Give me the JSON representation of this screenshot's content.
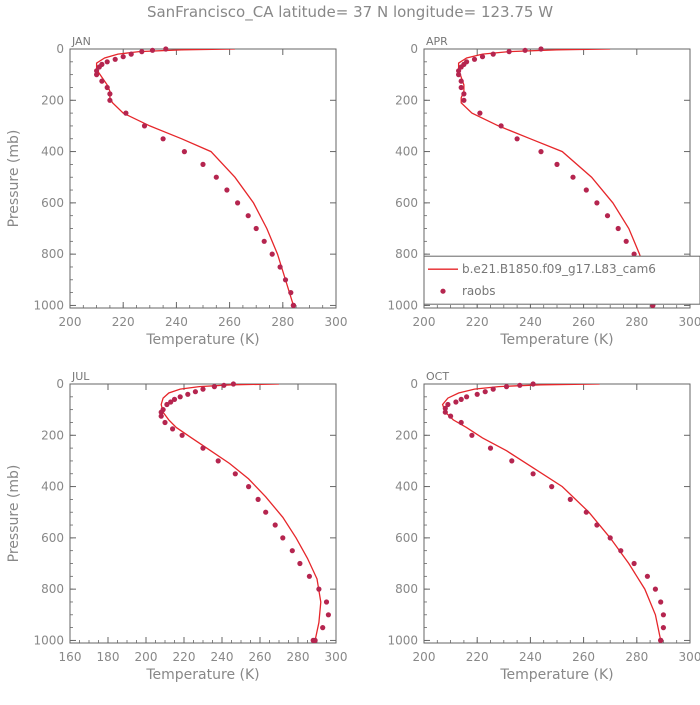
{
  "title": "SanFrancisco_CA  latitude= 37 N longitude= 123.75 W",
  "colors": {
    "model": "#e6262a",
    "obs": "#b5254f",
    "axis": "#666666",
    "text": "#888888"
  },
  "legend": {
    "model_label": "b.e21.B1850.f09_g17.L83_cam6",
    "obs_label": "raobs"
  },
  "chart_data": [
    {
      "type": "line",
      "panel": "JAN",
      "xlabel": "Temperature (K)",
      "ylabel": "Pressure (mb)",
      "xlim": [
        200,
        300
      ],
      "ylim": [
        1010,
        0
      ],
      "y_inverted": true,
      "xticks": [
        200,
        220,
        240,
        260,
        280,
        300
      ],
      "yticks": [
        0,
        200,
        400,
        600,
        800,
        1000
      ],
      "model": {
        "T": [
          262,
          242,
          226,
          218,
          213,
          210,
          210,
          212,
          214,
          215,
          215,
          216,
          220,
          230,
          242,
          253,
          262,
          269,
          274,
          278,
          281,
          284
        ],
        "P": [
          0,
          3,
          10,
          20,
          35,
          55,
          80,
          110,
          140,
          165,
          190,
          210,
          250,
          300,
          350,
          400,
          500,
          600,
          700,
          800,
          900,
          1000
        ]
      },
      "obs": {
        "T": [
          236,
          231,
          227,
          223,
          220,
          217,
          214,
          212,
          211,
          210,
          210,
          212,
          214,
          215,
          215,
          221,
          228,
          235,
          243,
          250,
          255,
          259,
          263,
          267,
          270,
          273,
          276,
          279,
          281,
          283,
          284,
          284
        ],
        "P": [
          0,
          5,
          10,
          20,
          30,
          40,
          50,
          60,
          70,
          85,
          100,
          125,
          150,
          175,
          200,
          250,
          300,
          350,
          400,
          450,
          500,
          550,
          600,
          650,
          700,
          750,
          800,
          850,
          900,
          950,
          1000,
          1000
        ]
      }
    },
    {
      "type": "line",
      "panel": "APR",
      "xlabel": "Temperature (K)",
      "ylabel": "",
      "xlim": [
        200,
        300
      ],
      "ylim": [
        1010,
        0
      ],
      "y_inverted": true,
      "xticks": [
        200,
        220,
        240,
        260,
        280,
        300
      ],
      "yticks": [
        0,
        200,
        400,
        600,
        800,
        1000
      ],
      "show_legend": true,
      "model": {
        "T": [
          270,
          250,
          232,
          222,
          216,
          213,
          213,
          214,
          215,
          215,
          214,
          214,
          218,
          228,
          240,
          252,
          263,
          271,
          277,
          281,
          284,
          286
        ],
        "P": [
          0,
          3,
          10,
          20,
          35,
          55,
          80,
          110,
          140,
          165,
          190,
          210,
          250,
          300,
          350,
          400,
          500,
          600,
          700,
          800,
          900,
          1000
        ]
      },
      "obs": {
        "T": [
          244,
          238,
          232,
          226,
          222,
          219,
          216,
          215,
          214,
          213,
          213,
          214,
          214,
          215,
          215,
          221,
          229,
          235,
          244,
          250,
          256,
          261,
          265,
          269,
          273,
          276,
          279,
          282,
          284,
          285,
          286,
          286
        ],
        "P": [
          0,
          5,
          10,
          20,
          30,
          40,
          50,
          60,
          70,
          85,
          100,
          125,
          150,
          175,
          200,
          250,
          300,
          350,
          400,
          450,
          500,
          550,
          600,
          650,
          700,
          750,
          800,
          850,
          900,
          950,
          1000,
          1000
        ]
      }
    },
    {
      "type": "line",
      "panel": "JUL",
      "xlabel": "Temperature (K)",
      "ylabel": "Pressure (mb)",
      "xlim": [
        160,
        300
      ],
      "ylim": [
        1010,
        0
      ],
      "y_inverted": true,
      "xticks": [
        160,
        180,
        200,
        220,
        240,
        260,
        280,
        300
      ],
      "yticks": [
        0,
        200,
        400,
        600,
        800,
        1000
      ],
      "model": {
        "T": [
          270,
          245,
          228,
          218,
          212,
          209,
          208,
          209,
          212,
          216,
          224,
          234,
          244,
          254,
          263,
          272,
          279,
          285,
          290,
          292,
          291,
          289
        ],
        "P": [
          0,
          3,
          10,
          20,
          35,
          55,
          80,
          110,
          140,
          170,
          210,
          260,
          310,
          370,
          440,
          520,
          600,
          680,
          760,
          850,
          930,
          1000
        ]
      },
      "obs": {
        "T": [
          246,
          241,
          236,
          230,
          226,
          222,
          218,
          215,
          213,
          211,
          209,
          208,
          208,
          210,
          214,
          219,
          230,
          238,
          247,
          254,
          259,
          263,
          268,
          272,
          277,
          281,
          286,
          291,
          295,
          296,
          293,
          288,
          289
        ],
        "P": [
          0,
          5,
          10,
          20,
          30,
          40,
          50,
          60,
          70,
          80,
          100,
          110,
          125,
          150,
          175,
          200,
          250,
          300,
          350,
          400,
          450,
          500,
          550,
          600,
          650,
          700,
          750,
          800,
          850,
          900,
          950,
          1000,
          1000
        ]
      }
    },
    {
      "type": "line",
      "panel": "OCT",
      "xlabel": "Temperature (K)",
      "ylabel": "",
      "xlim": [
        200,
        300
      ],
      "ylim": [
        1010,
        0
      ],
      "y_inverted": true,
      "xticks": [
        200,
        220,
        240,
        260,
        280,
        300
      ],
      "yticks": [
        0,
        200,
        400,
        600,
        800,
        1000
      ],
      "model": {
        "T": [
          266,
          244,
          228,
          219,
          213,
          209,
          207,
          208,
          211,
          216,
          222,
          231,
          240,
          252,
          262,
          270,
          277,
          283,
          287,
          289
        ],
        "P": [
          0,
          3,
          10,
          20,
          35,
          55,
          80,
          110,
          140,
          170,
          210,
          260,
          320,
          400,
          500,
          600,
          700,
          800,
          900,
          1000
        ]
      },
      "obs": {
        "T": [
          241,
          236,
          231,
          226,
          223,
          220,
          216,
          214,
          212,
          209,
          208,
          208,
          210,
          214,
          218,
          225,
          233,
          241,
          248,
          255,
          261,
          265,
          270,
          274,
          279,
          284,
          287,
          289,
          290,
          290,
          289,
          289
        ],
        "P": [
          0,
          5,
          10,
          20,
          30,
          40,
          50,
          60,
          70,
          80,
          95,
          110,
          125,
          150,
          200,
          250,
          300,
          350,
          400,
          450,
          500,
          550,
          600,
          650,
          700,
          750,
          800,
          850,
          900,
          950,
          1000,
          1000
        ]
      }
    }
  ]
}
